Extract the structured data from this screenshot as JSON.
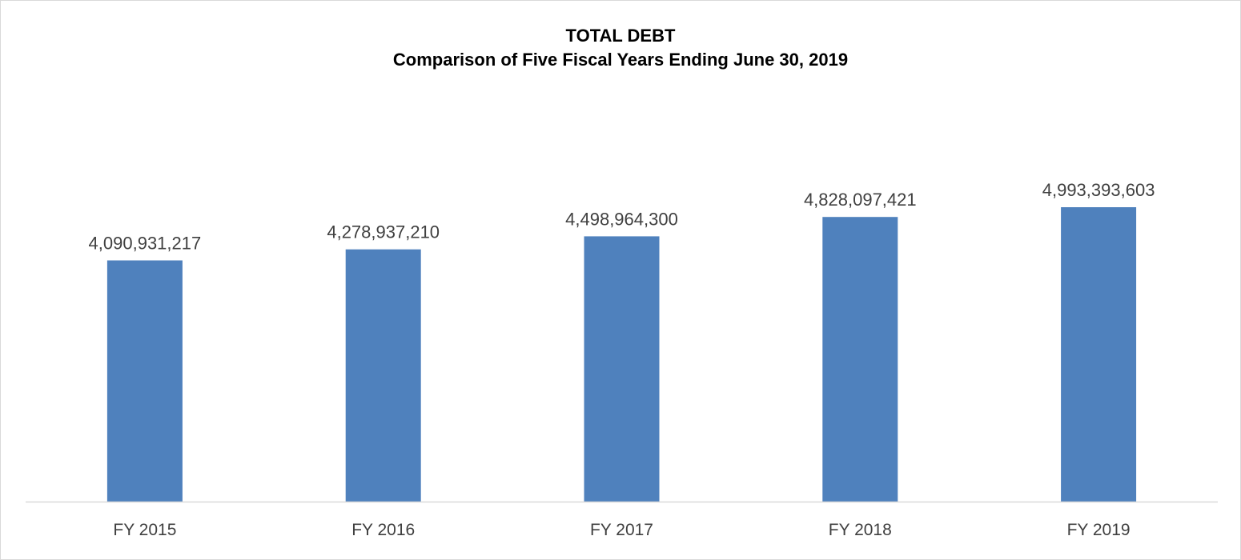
{
  "chart_data": {
    "type": "bar",
    "title": "TOTAL DEBT",
    "subtitle": "Comparison of Five Fiscal Years Ending June 30, 2019",
    "categories": [
      "FY 2015",
      "FY 2016",
      "FY 2017",
      "FY 2018",
      "FY 2019"
    ],
    "values": [
      4090931217,
      4278937210,
      4498964300,
      4828097421,
      4993393603
    ],
    "data_labels": [
      "4,090,931,217",
      "4,278,937,210",
      "4,498,964,300",
      "4,828,097,421",
      "4,993,393,603"
    ],
    "xlabel": "",
    "ylabel": "",
    "ylim": [
      0,
      5500000000
    ],
    "grid": false,
    "legend": "none",
    "y_axis_visible": false
  },
  "colors": {
    "bar": "#4f81bd",
    "axis_line": "#d9d9d9",
    "label_text": "#404040",
    "title_text": "#000000"
  }
}
